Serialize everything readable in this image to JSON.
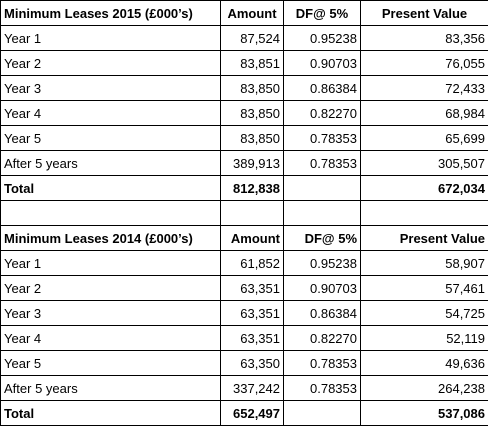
{
  "tables": [
    {
      "header": [
        "Minimum Leases 2015  (£000’s)",
        "Amount",
        "DF@ 5%",
        "Present Value"
      ],
      "rows": [
        [
          "Year 1",
          "87,524",
          "0.95238",
          "83,356"
        ],
        [
          "Year 2",
          "83,851",
          "0.90703",
          "76,055"
        ],
        [
          "Year 3",
          "83,850",
          "0.86384",
          "72,433"
        ],
        [
          "Year 4",
          "83,850",
          "0.82270",
          "68,984"
        ],
        [
          "Year 5",
          "83,850",
          "0.78353",
          "65,699"
        ],
        [
          "After 5 years",
          "389,913",
          "0.78353",
          "305,507"
        ]
      ],
      "total": {
        "label": "Total",
        "amount": "812,838",
        "present_value": "672,034"
      }
    },
    {
      "header": [
        "Minimum Leases 2014  (£000’s)",
        "Amount",
        "DF@ 5%",
        "Present Value"
      ],
      "rows": [
        [
          "Year 1",
          "61,852",
          "0.95238",
          "58,907"
        ],
        [
          "Year 2",
          "63,351",
          "0.90703",
          "57,461"
        ],
        [
          "Year 3",
          "63,351",
          "0.86384",
          "54,725"
        ],
        [
          "Year 4",
          "63,351",
          "0.82270",
          "52,119"
        ],
        [
          "Year 5",
          "63,350",
          "0.78353",
          "49,636"
        ],
        [
          "After 5 years",
          "337,242",
          "0.78353",
          "264,238"
        ]
      ],
      "total": {
        "label": "Total",
        "amount": "652,497",
        "present_value": "537,086"
      }
    }
  ]
}
